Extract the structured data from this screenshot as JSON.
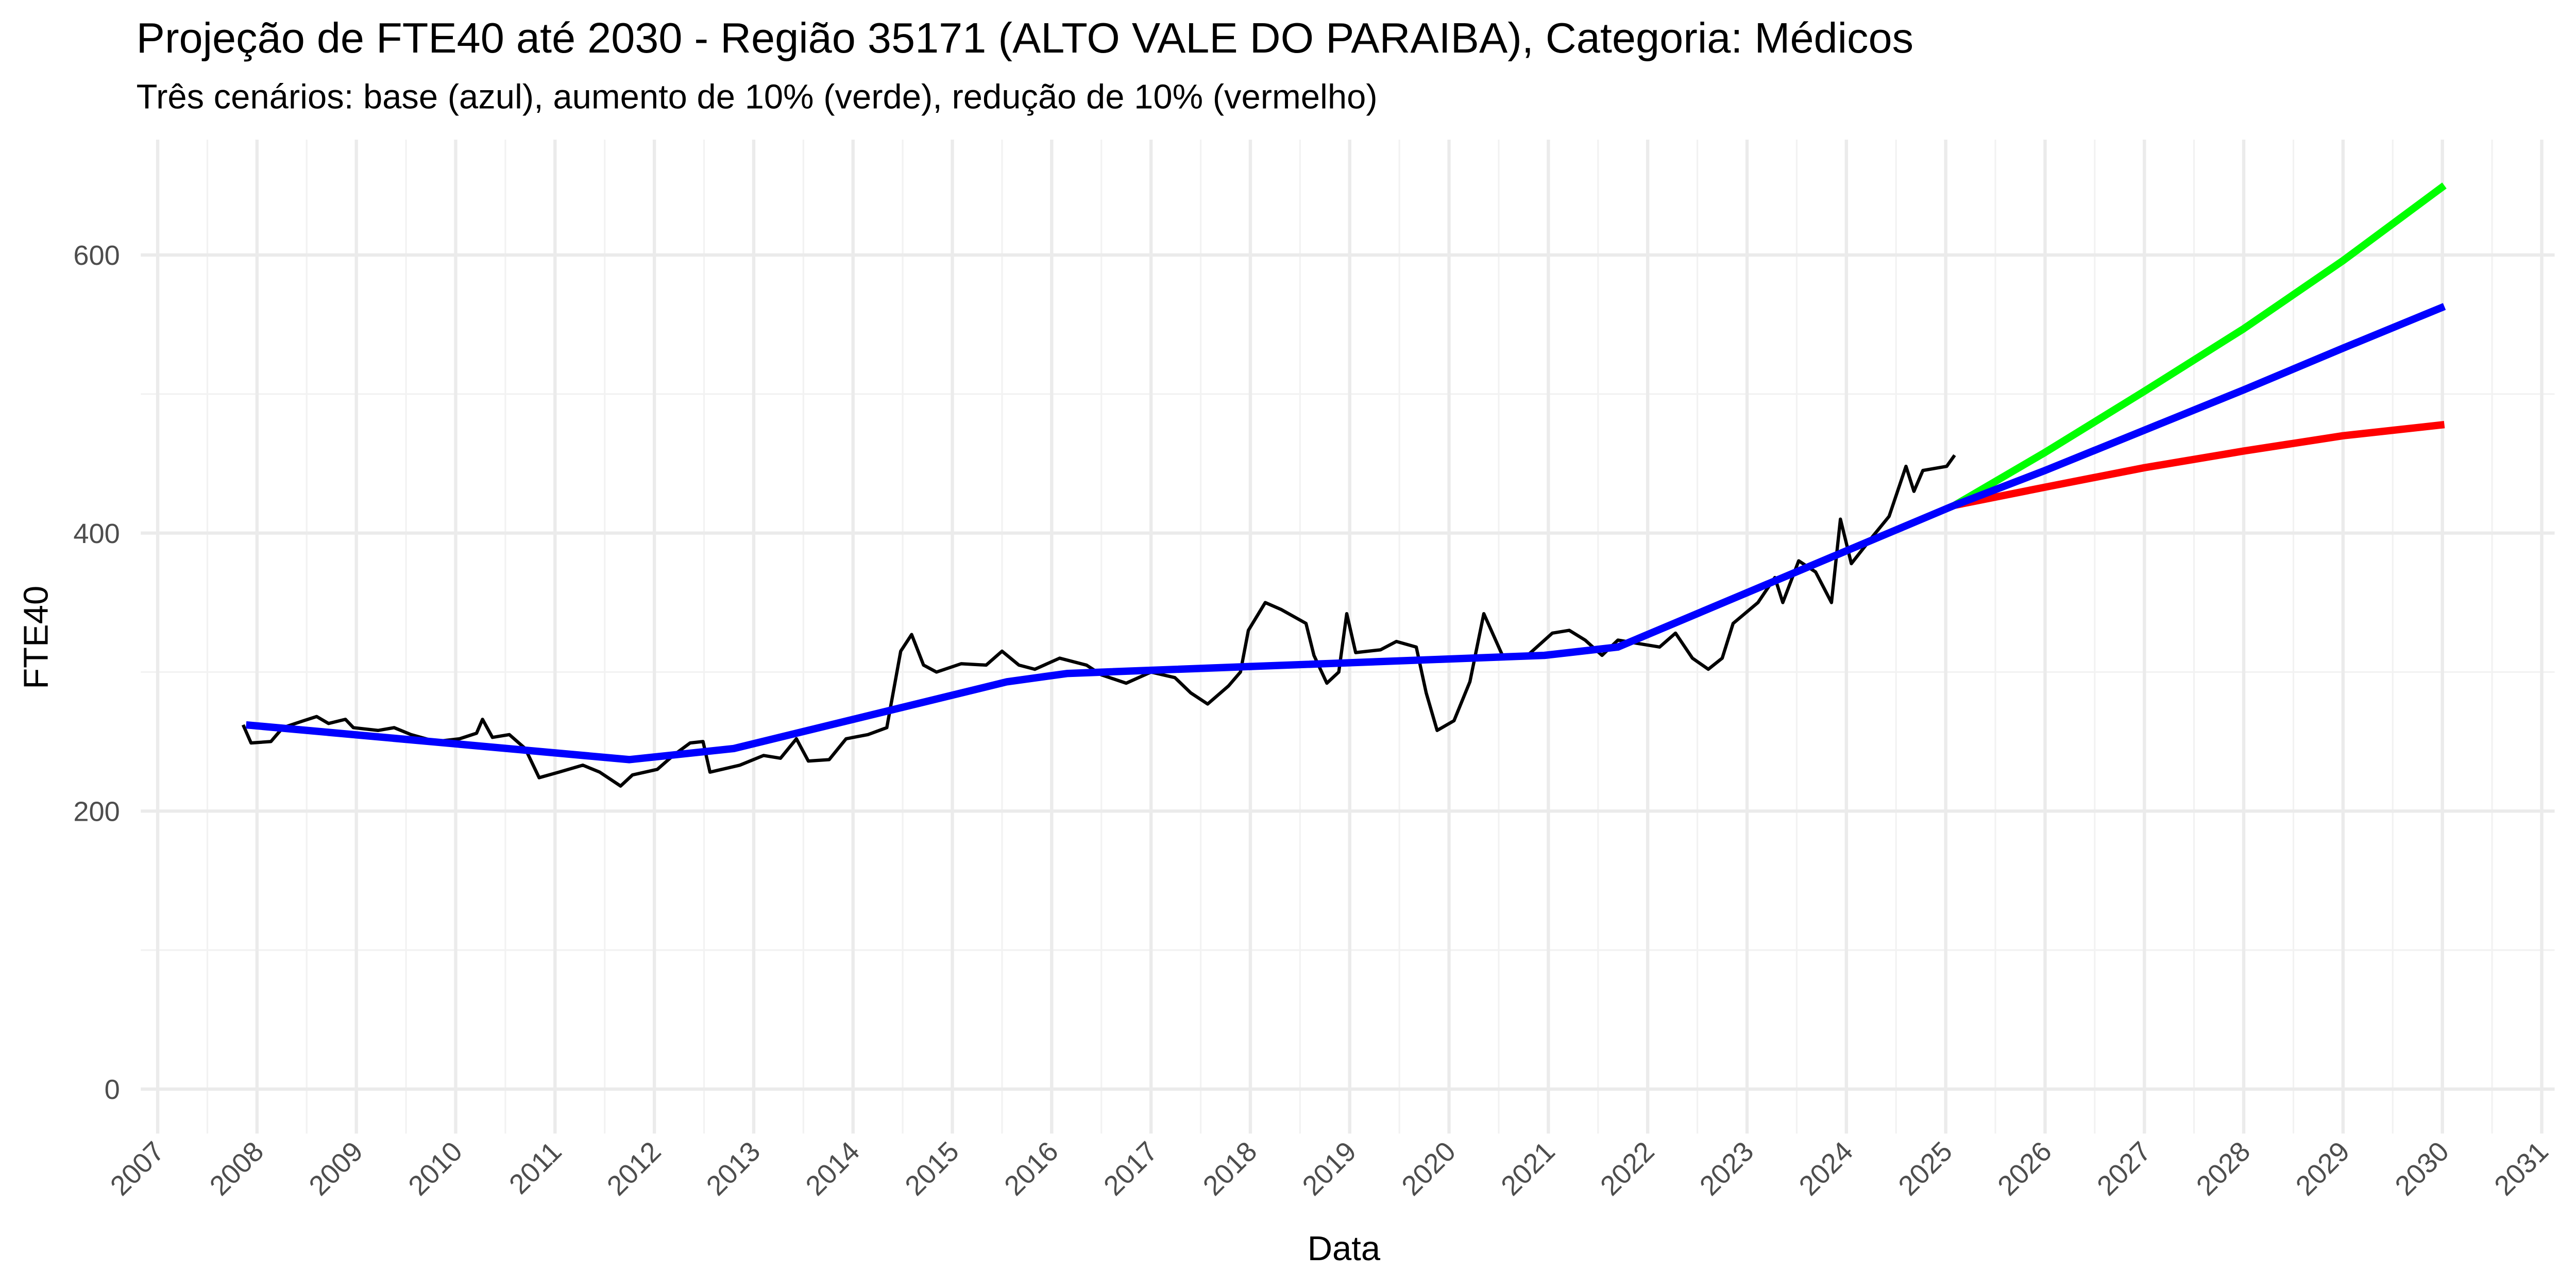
{
  "chart_data": {
    "type": "line",
    "title": "Projeção de FTE40 até 2030 - Região 35171 (ALTO VALE DO PARAIBA), Categoria: Médicos",
    "subtitle": "Três cenários: base (azul), aumento de 10% (verde), redução de 10% (vermelho)",
    "x_label": "Data",
    "y_label": "FTE40",
    "xlim": [
      2006.83,
      2031.13
    ],
    "ylim": [
      -32,
      683
    ],
    "xticks": [
      2007,
      2008,
      2009,
      2010,
      2011,
      2012,
      2013,
      2014,
      2015,
      2016,
      2017,
      2018,
      2019,
      2020,
      2021,
      2022,
      2023,
      2024,
      2025,
      2026,
      2027,
      2028,
      2029,
      2030,
      2031
    ],
    "minor_xticks": [
      2007.5,
      2008.5,
      2009.5,
      2010.5,
      2011.5,
      2012.5,
      2013.5,
      2014.5,
      2015.5,
      2016.5,
      2017.5,
      2018.5,
      2019.5,
      2020.5,
      2021.5,
      2022.5,
      2023.5,
      2024.5,
      2025.5,
      2026.5,
      2027.5,
      2028.5,
      2029.5,
      2030.5
    ],
    "yticks": [
      0,
      200,
      400,
      600
    ],
    "minor_yticks": [
      100,
      300,
      500
    ],
    "grid": true,
    "series": [
      {
        "color": "#00ff00",
        "width": 4.5,
        "x": [
          2025.09,
          2026,
          2027,
          2028,
          2029,
          2030.02
        ],
        "values": [
          420,
          458,
          502,
          547,
          596,
          650
        ]
      },
      {
        "color": "#ff0000",
        "width": 4.5,
        "x": [
          2025.09,
          2026,
          2027,
          2028,
          2029,
          2030.02
        ],
        "values": [
          420,
          433,
          447,
          459,
          470,
          478
        ]
      },
      {
        "color": "#000000",
        "width": 2,
        "x": [
          2007.86,
          2007.94,
          2008.14,
          2008.26,
          2008.47,
          2008.6,
          2008.72,
          2008.89,
          2008.97,
          2009.22,
          2009.38,
          2009.55,
          2009.8,
          2010.04,
          2010.21,
          2010.27,
          2010.37,
          2010.54,
          2010.7,
          2010.84,
          2011.04,
          2011.28,
          2011.45,
          2011.66,
          2011.78,
          2012.03,
          2012.19,
          2012.36,
          2012.49,
          2012.56,
          2012.86,
          2013.1,
          2013.27,
          2013.43,
          2013.55,
          2013.76,
          2013.93,
          2014.15,
          2014.34,
          2014.48,
          2014.59,
          2014.71,
          2014.84,
          2015.09,
          2015.34,
          2015.5,
          2015.67,
          2015.83,
          2016.08,
          2016.35,
          2016.5,
          2016.75,
          2017.0,
          2017.24,
          2017.4,
          2017.57,
          2017.78,
          2017.9,
          2017.98,
          2018.15,
          2018.31,
          2018.56,
          2018.64,
          2018.77,
          2018.89,
          2018.97,
          2019.06,
          2019.31,
          2019.47,
          2019.67,
          2019.77,
          2019.88,
          2020.05,
          2020.21,
          2020.35,
          2020.55,
          2020.79,
          2021.04,
          2021.21,
          2021.37,
          2021.54,
          2021.7,
          2021.95,
          2022.12,
          2022.28,
          2022.45,
          2022.61,
          2022.75,
          2022.86,
          2023.11,
          2023.28,
          2023.36,
          2023.52,
          2023.69,
          2023.85,
          2023.94,
          2024.05,
          2024.27,
          2024.43,
          2024.6,
          2024.68,
          2024.77,
          2025.01,
          2025.09
        ],
        "values": [
          262,
          249,
          250,
          260,
          265,
          268,
          263,
          266,
          260,
          258,
          260,
          255,
          250,
          252,
          256,
          266,
          253,
          255,
          245,
          224,
          228,
          233,
          228,
          218,
          226,
          230,
          240,
          249,
          250,
          228,
          233,
          240,
          238,
          252,
          236,
          237,
          252,
          255,
          260,
          315,
          327,
          305,
          300,
          306,
          305,
          315,
          305,
          302,
          310,
          305,
          298,
          292,
          300,
          296,
          285,
          277,
          290,
          300,
          330,
          350,
          345,
          335,
          312,
          292,
          300,
          342,
          314,
          316,
          322,
          318,
          285,
          258,
          265,
          293,
          342,
          310,
          312,
          328,
          330,
          323,
          312,
          323,
          320,
          318,
          328,
          310,
          302,
          310,
          335,
          350,
          368,
          350,
          380,
          372,
          350,
          410,
          378,
          398,
          412,
          448,
          430,
          445,
          448,
          456
        ]
      },
      {
        "color": "#0000ff",
        "width": 4.5,
        "x": [
          2007.89,
          2011.75,
          2012.8,
          2015.55,
          2016.16,
          2020.96,
          2021.7,
          2025.09
        ],
        "values": [
          262,
          237,
          245,
          293,
          299,
          312,
          318,
          420
        ]
      },
      {
        "color": "#0000ff",
        "width": 4.5,
        "x": [
          2025.09,
          2026,
          2027,
          2028,
          2029,
          2030.02
        ],
        "values": [
          420,
          445,
          474,
          503,
          533,
          563
        ]
      }
    ]
  }
}
